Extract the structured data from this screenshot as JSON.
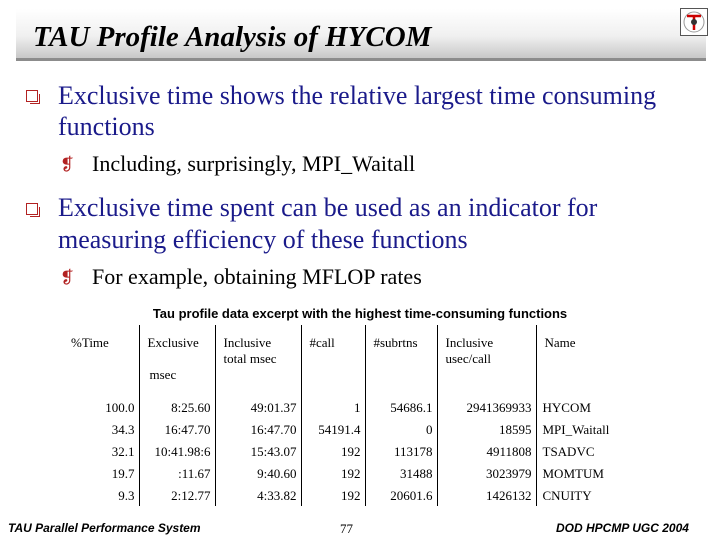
{
  "slide": {
    "title": "TAU Profile Analysis of HYCOM",
    "bullets": [
      {
        "line1": "Exclusive time shows the relative largest time consuming",
        "line2": "functions",
        "sub": "Including, surprisingly, MPI_Waitall"
      },
      {
        "line1": "Exclusive time spent can be used as an indicator for",
        "line2": "measuring efficiency of these functions",
        "sub": "For example, obtaining MFLOP rates"
      }
    ],
    "sub_bullet_glyph": "❡"
  },
  "table": {
    "caption": "Tau profile data excerpt with the highest time-consuming functions",
    "headers": {
      "time": "%Time",
      "excl_1": "Exclusive",
      "excl_2": "msec",
      "incl_1": "Inclusive",
      "incl_2": "total msec",
      "call": "#call",
      "subrs": "#subrtns",
      "usec_1": "Inclusive",
      "usec_2": "usec/call",
      "name": "Name"
    },
    "rows": [
      {
        "time": "100.0",
        "excl": "8:25.60",
        "incl": "49:01.37",
        "call": "1",
        "subrs": "54686.1",
        "usec": "2941369933",
        "name": "HYCOM"
      },
      {
        "time": "34.3",
        "excl": "16:47.70",
        "incl": "16:47.70",
        "call": "54191.4",
        "subrs": "0",
        "usec": "18595",
        "name": "MPI_Waitall"
      },
      {
        "time": "32.1",
        "excl": "10:41.98:6",
        "incl": "15:43.07",
        "call": "192",
        "subrs": "113178",
        "usec": "4911808",
        "name": "TSADVC"
      },
      {
        "time": "19.7",
        "excl": ":11.67",
        "incl": "9:40.60",
        "call": "192",
        "subrs": "31488",
        "usec": "3023979",
        "name": "MOMTUM"
      },
      {
        "time": "9.3",
        "excl": "2:12.77",
        "incl": "4:33.82",
        "call": "192",
        "subrs": "20601.6",
        "usec": "1426132",
        "name": "CNUITY"
      }
    ]
  },
  "footer": {
    "left": "TAU Parallel Performance System",
    "page": "77",
    "right": "DOD HPCMP UGC 2004"
  },
  "colors": {
    "bullet_text": "#1a1a8a",
    "bullet_marker": "#b22222"
  }
}
